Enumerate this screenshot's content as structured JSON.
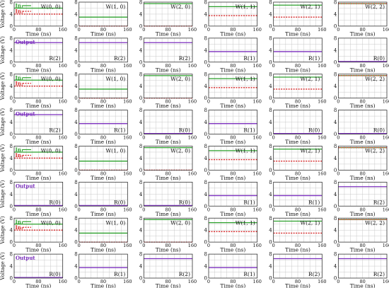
{
  "axes": {
    "ylabel": "Voltage (V)",
    "xlabel": "Time (ns)",
    "xticks": [
      "0",
      "80",
      "160"
    ],
    "yticks": [
      "0",
      "4",
      "8"
    ],
    "xlim": [
      0,
      160
    ],
    "ylim": [
      0,
      8
    ]
  },
  "legend": {
    "in1": "In₁",
    "in2": "In₂",
    "output": "Output"
  },
  "colors": {
    "in1": "#2ca02c",
    "in2": "#d62728",
    "w_med": "#2ca02c",
    "w_low": "#e08a1e",
    "w_high": "#e08a1e",
    "output": "#7b2fbe",
    "grid": "#c8c8c8",
    "frame": "#333333"
  },
  "chart_data": [
    {
      "type": "line",
      "title": "W(0, 0)",
      "series": [
        {
          "name": "In₁",
          "values": [
            6,
            6
          ]
        },
        {
          "name": "In₂",
          "values": [
            4,
            4
          ]
        }
      ]
    },
    {
      "type": "line",
      "title": "W(1, 0)",
      "series": [
        {
          "values": [
            3,
            3
          ]
        },
        {
          "values": [
            0,
            0
          ]
        }
      ]
    },
    {
      "type": "line",
      "title": "W(2, 0)",
      "series": [
        {
          "values": [
            7.5,
            7.5
          ]
        },
        {
          "values": [
            0,
            0
          ]
        }
      ]
    },
    {
      "type": "line",
      "title": "W(1, 1)",
      "series": [
        {
          "values": [
            6.5,
            6.5
          ]
        },
        {
          "values": [
            3.5,
            3.5
          ]
        }
      ]
    },
    {
      "type": "line",
      "title": "W(2, 1)",
      "series": [
        {
          "values": [
            7,
            7
          ]
        },
        {
          "values": [
            3,
            3
          ]
        }
      ]
    },
    {
      "type": "line",
      "title": "W(2, 2)",
      "series": [
        {
          "values": [
            7.5,
            7.5
          ]
        },
        {
          "values": [
            7.5,
            7.5
          ]
        }
      ]
    },
    {
      "type": "line",
      "title": "R(2)",
      "series": [
        {
          "name": "Output",
          "values": [
            6.5,
            6.5
          ]
        }
      ]
    },
    {
      "type": "line",
      "title": "R(2)",
      "series": [
        {
          "values": [
            6.5,
            6.5
          ]
        }
      ]
    },
    {
      "type": "line",
      "title": "R(2)",
      "series": [
        {
          "values": [
            6.5,
            6.5
          ]
        }
      ]
    },
    {
      "type": "line",
      "title": "R(1)",
      "series": [
        {
          "values": [
            3.5,
            3.5
          ]
        }
      ]
    },
    {
      "type": "line",
      "title": "R(1)",
      "series": [
        {
          "values": [
            3.5,
            3.5
          ]
        }
      ]
    },
    {
      "type": "line",
      "title": "R(0)",
      "series": [
        {
          "values": [
            0.2,
            0.2
          ]
        }
      ]
    },
    {
      "type": "line",
      "title": "W(0, 0)",
      "series": [
        {
          "name": "In₁",
          "values": [
            6,
            6
          ]
        },
        {
          "name": "In₂",
          "values": [
            4,
            4
          ]
        }
      ]
    },
    {
      "type": "line",
      "title": "W(1, 0)",
      "series": [
        {
          "values": [
            3,
            3
          ]
        },
        {
          "values": [
            0,
            0
          ]
        }
      ]
    },
    {
      "type": "line",
      "title": "W(2, 0)",
      "series": [
        {
          "values": [
            7.5,
            7.5
          ]
        },
        {
          "values": [
            0,
            0
          ]
        }
      ]
    },
    {
      "type": "line",
      "title": "W(1, 1)",
      "series": [
        {
          "values": [
            6.5,
            6.5
          ]
        },
        {
          "values": [
            3.5,
            3.5
          ]
        }
      ]
    },
    {
      "type": "line",
      "title": "W(2, 1)",
      "series": [
        {
          "values": [
            7,
            7
          ]
        },
        {
          "values": [
            3,
            3
          ]
        }
      ]
    },
    {
      "type": "line",
      "title": "W(2, 2)",
      "series": [
        {
          "values": [
            7.5,
            7.5
          ]
        },
        {
          "values": [
            7.5,
            7.5
          ]
        }
      ]
    },
    {
      "type": "line",
      "title": "R(2)",
      "series": [
        {
          "name": "Output",
          "values": [
            6.5,
            6.5
          ]
        }
      ]
    },
    {
      "type": "line",
      "title": "R(1)",
      "series": [
        {
          "values": [
            3.5,
            3.5
          ]
        }
      ]
    },
    {
      "type": "line",
      "title": "R(0)",
      "series": [
        {
          "values": [
            0.2,
            0.2
          ]
        }
      ]
    },
    {
      "type": "line",
      "title": "R(1)",
      "series": [
        {
          "values": [
            3.5,
            3.5
          ]
        }
      ]
    },
    {
      "type": "line",
      "title": "R(0)",
      "series": [
        {
          "values": [
            0.2,
            0.2
          ]
        }
      ]
    },
    {
      "type": "line",
      "title": "R(0)",
      "series": [
        {
          "values": [
            0.2,
            0.2
          ]
        }
      ]
    },
    {
      "type": "line",
      "title": "W(0, 0)",
      "series": [
        {
          "name": "In₁",
          "values": [
            6,
            6
          ]
        },
        {
          "name": "In₂",
          "values": [
            4,
            4
          ]
        }
      ]
    },
    {
      "type": "line",
      "title": "W(1, 0)",
      "series": [
        {
          "values": [
            3,
            3
          ]
        },
        {
          "values": [
            0,
            0
          ]
        }
      ]
    },
    {
      "type": "line",
      "title": "W(2, 0)",
      "series": [
        {
          "values": [
            7.5,
            7.5
          ]
        },
        {
          "values": [
            0,
            0
          ]
        }
      ]
    },
    {
      "type": "line",
      "title": "W(1, 1)",
      "series": [
        {
          "values": [
            6.5,
            6.5
          ]
        },
        {
          "values": [
            3.5,
            3.5
          ]
        }
      ]
    },
    {
      "type": "line",
      "title": "W(2, 1)",
      "series": [
        {
          "values": [
            7,
            7
          ]
        },
        {
          "values": [
            3,
            3
          ]
        }
      ]
    },
    {
      "type": "line",
      "title": "W(2, 2)",
      "series": [
        {
          "values": [
            7.5,
            7.5
          ]
        },
        {
          "values": [
            7.5,
            7.5
          ]
        }
      ]
    },
    {
      "type": "line",
      "title": "R(0)",
      "series": [
        {
          "name": "Output",
          "values": [
            0.2,
            0.2
          ]
        }
      ]
    },
    {
      "type": "line",
      "title": "R(0)",
      "series": [
        {
          "values": [
            0.2,
            0.2
          ]
        }
      ]
    },
    {
      "type": "line",
      "title": "R(0)",
      "series": [
        {
          "values": [
            0.2,
            0.2
          ]
        }
      ]
    },
    {
      "type": "line",
      "title": "R(1)",
      "series": [
        {
          "values": [
            3.5,
            3.5
          ]
        }
      ]
    },
    {
      "type": "line",
      "title": "R(1)",
      "series": [
        {
          "values": [
            3.5,
            3.5
          ]
        }
      ]
    },
    {
      "type": "line",
      "title": "R(2)",
      "series": [
        {
          "values": [
            6.5,
            6.5
          ]
        }
      ]
    },
    {
      "type": "line",
      "title": "W(0, 0)",
      "series": [
        {
          "name": "In₁",
          "values": [
            6,
            6
          ]
        },
        {
          "name": "In₂",
          "values": [
            4,
            4
          ]
        }
      ]
    },
    {
      "type": "line",
      "title": "W(1, 0)",
      "series": [
        {
          "values": [
            3,
            3
          ]
        },
        {
          "values": [
            0,
            0
          ]
        }
      ]
    },
    {
      "type": "line",
      "title": "W(2, 0)",
      "series": [
        {
          "values": [
            7.5,
            7.5
          ]
        },
        {
          "values": [
            0,
            0
          ]
        }
      ]
    },
    {
      "type": "line",
      "title": "W(1, 1)",
      "series": [
        {
          "values": [
            6.5,
            6.5
          ]
        },
        {
          "values": [
            3.5,
            3.5
          ]
        }
      ]
    },
    {
      "type": "line",
      "title": "W(2, 1)",
      "series": [
        {
          "values": [
            7,
            7
          ]
        },
        {
          "values": [
            3,
            3
          ]
        }
      ]
    },
    {
      "type": "line",
      "title": "W(2, 2)",
      "series": [
        {
          "values": [
            7.5,
            7.5
          ]
        },
        {
          "values": [
            7.5,
            7.5
          ]
        }
      ]
    },
    {
      "type": "line",
      "title": "R(0)",
      "series": [
        {
          "name": "Output",
          "values": [
            0.2,
            0.2
          ]
        }
      ]
    },
    {
      "type": "line",
      "title": "R(1)",
      "series": [
        {
          "values": [
            3.5,
            3.5
          ]
        }
      ]
    },
    {
      "type": "line",
      "title": "R(2)",
      "series": [
        {
          "values": [
            6.5,
            6.5
          ]
        }
      ]
    },
    {
      "type": "line",
      "title": "R(1)",
      "series": [
        {
          "values": [
            3.5,
            3.5
          ]
        }
      ]
    },
    {
      "type": "line",
      "title": "R(2)",
      "series": [
        {
          "values": [
            6.5,
            6.5
          ]
        }
      ]
    },
    {
      "type": "line",
      "title": "R(2)",
      "series": [
        {
          "values": [
            6.5,
            6.5
          ]
        }
      ]
    }
  ]
}
